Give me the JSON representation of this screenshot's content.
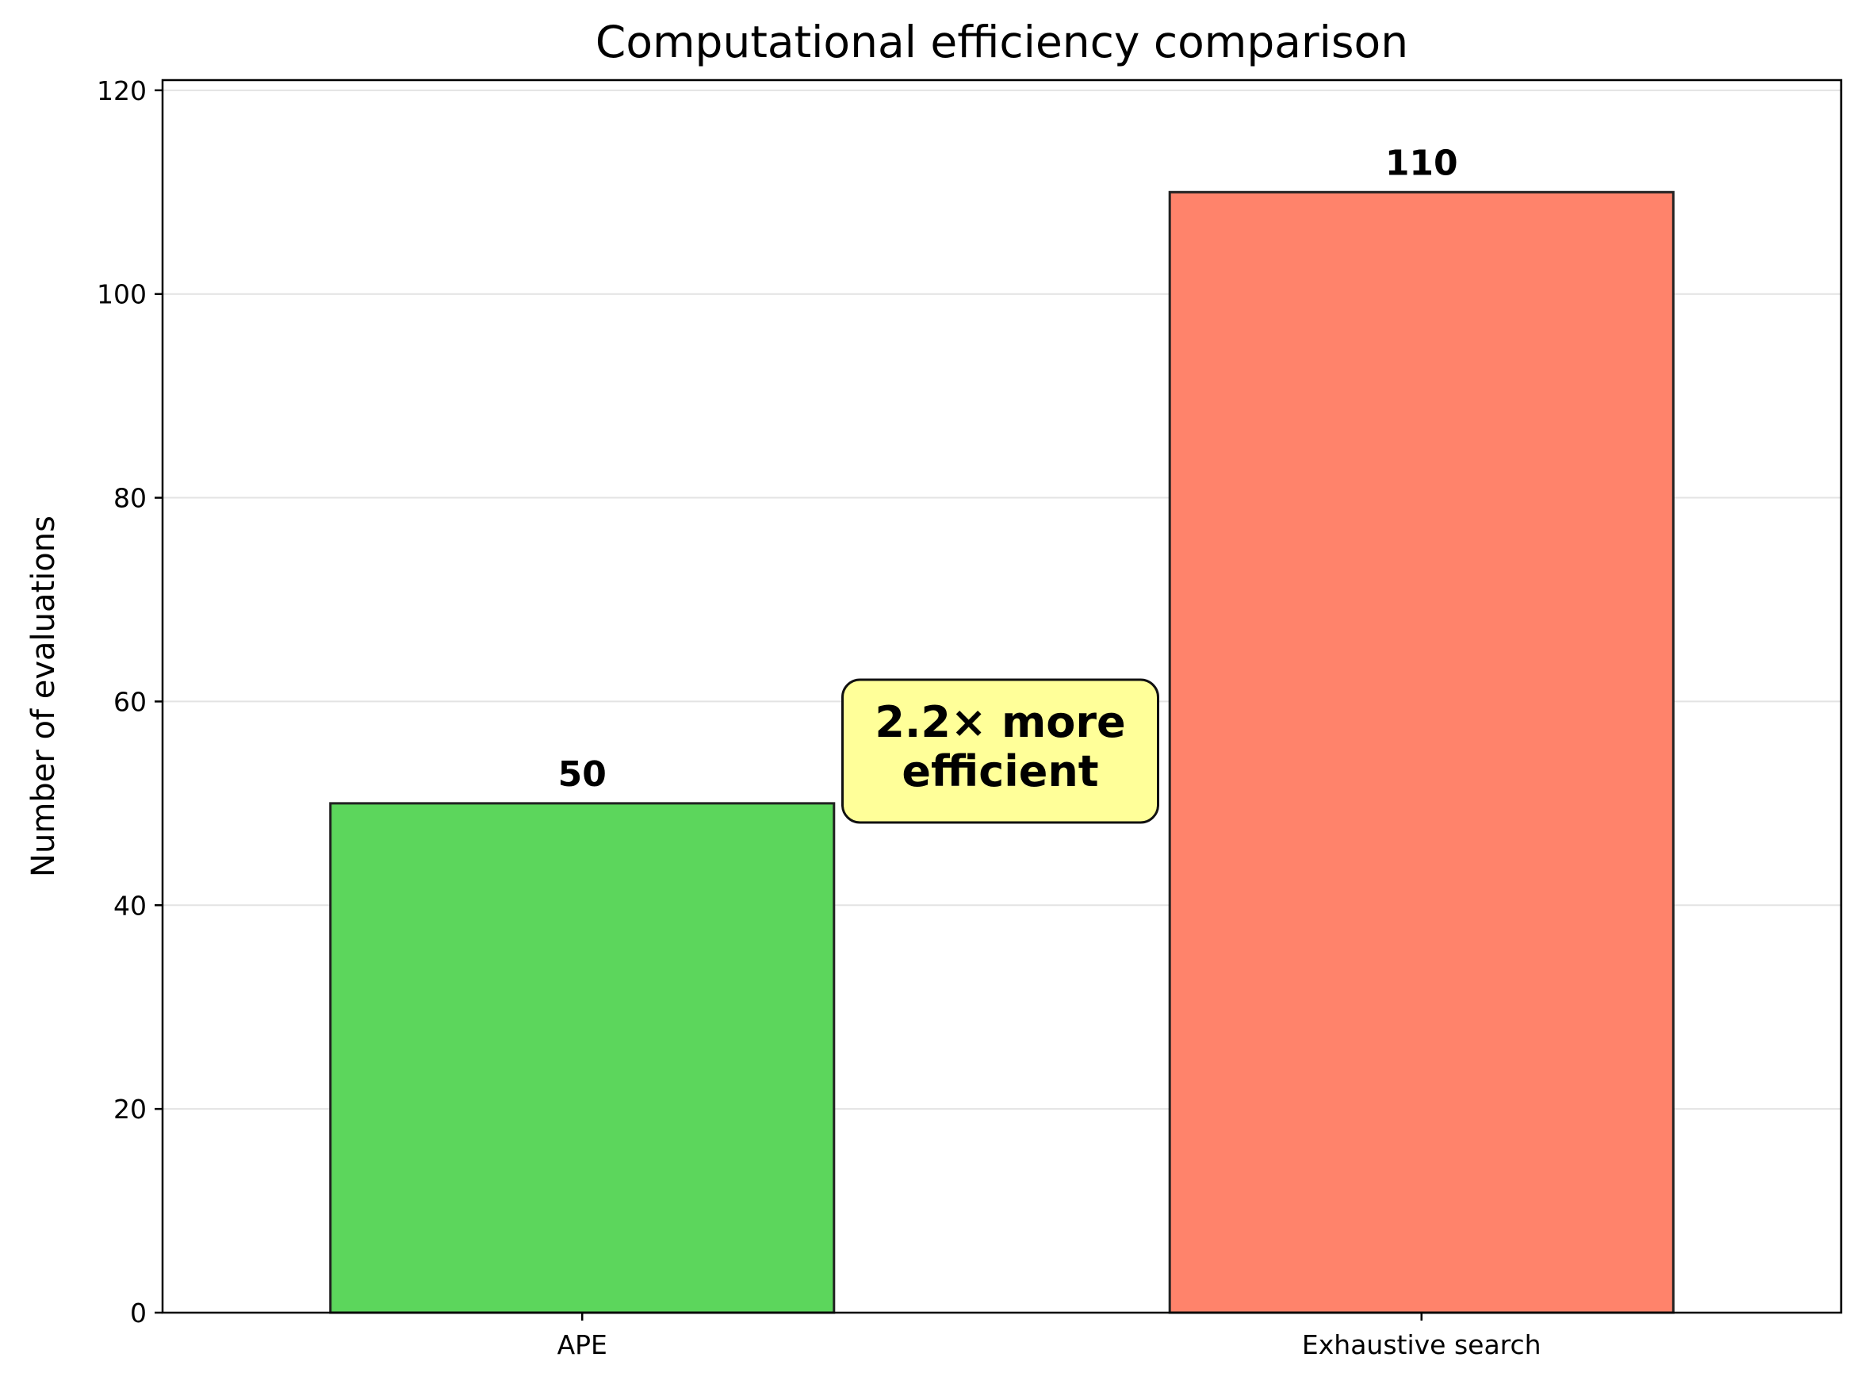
{
  "chart_data": {
    "type": "bar",
    "title": "Computational efficiency comparison",
    "xlabel": "",
    "ylabel": "Number of evaluations",
    "categories": [
      "APE",
      "Exhaustive search"
    ],
    "values": [
      50,
      110
    ],
    "data_labels": [
      "50",
      "110"
    ],
    "colors": [
      "#5cd65c",
      "#ff836b"
    ],
    "ylim": [
      0,
      121
    ],
    "yticks": [
      0,
      20,
      40,
      60,
      80,
      100,
      120
    ],
    "grid": "horizontal",
    "annotation": {
      "lines": [
        "2.2× more",
        "efficient"
      ],
      "background": "#ffff99"
    }
  }
}
